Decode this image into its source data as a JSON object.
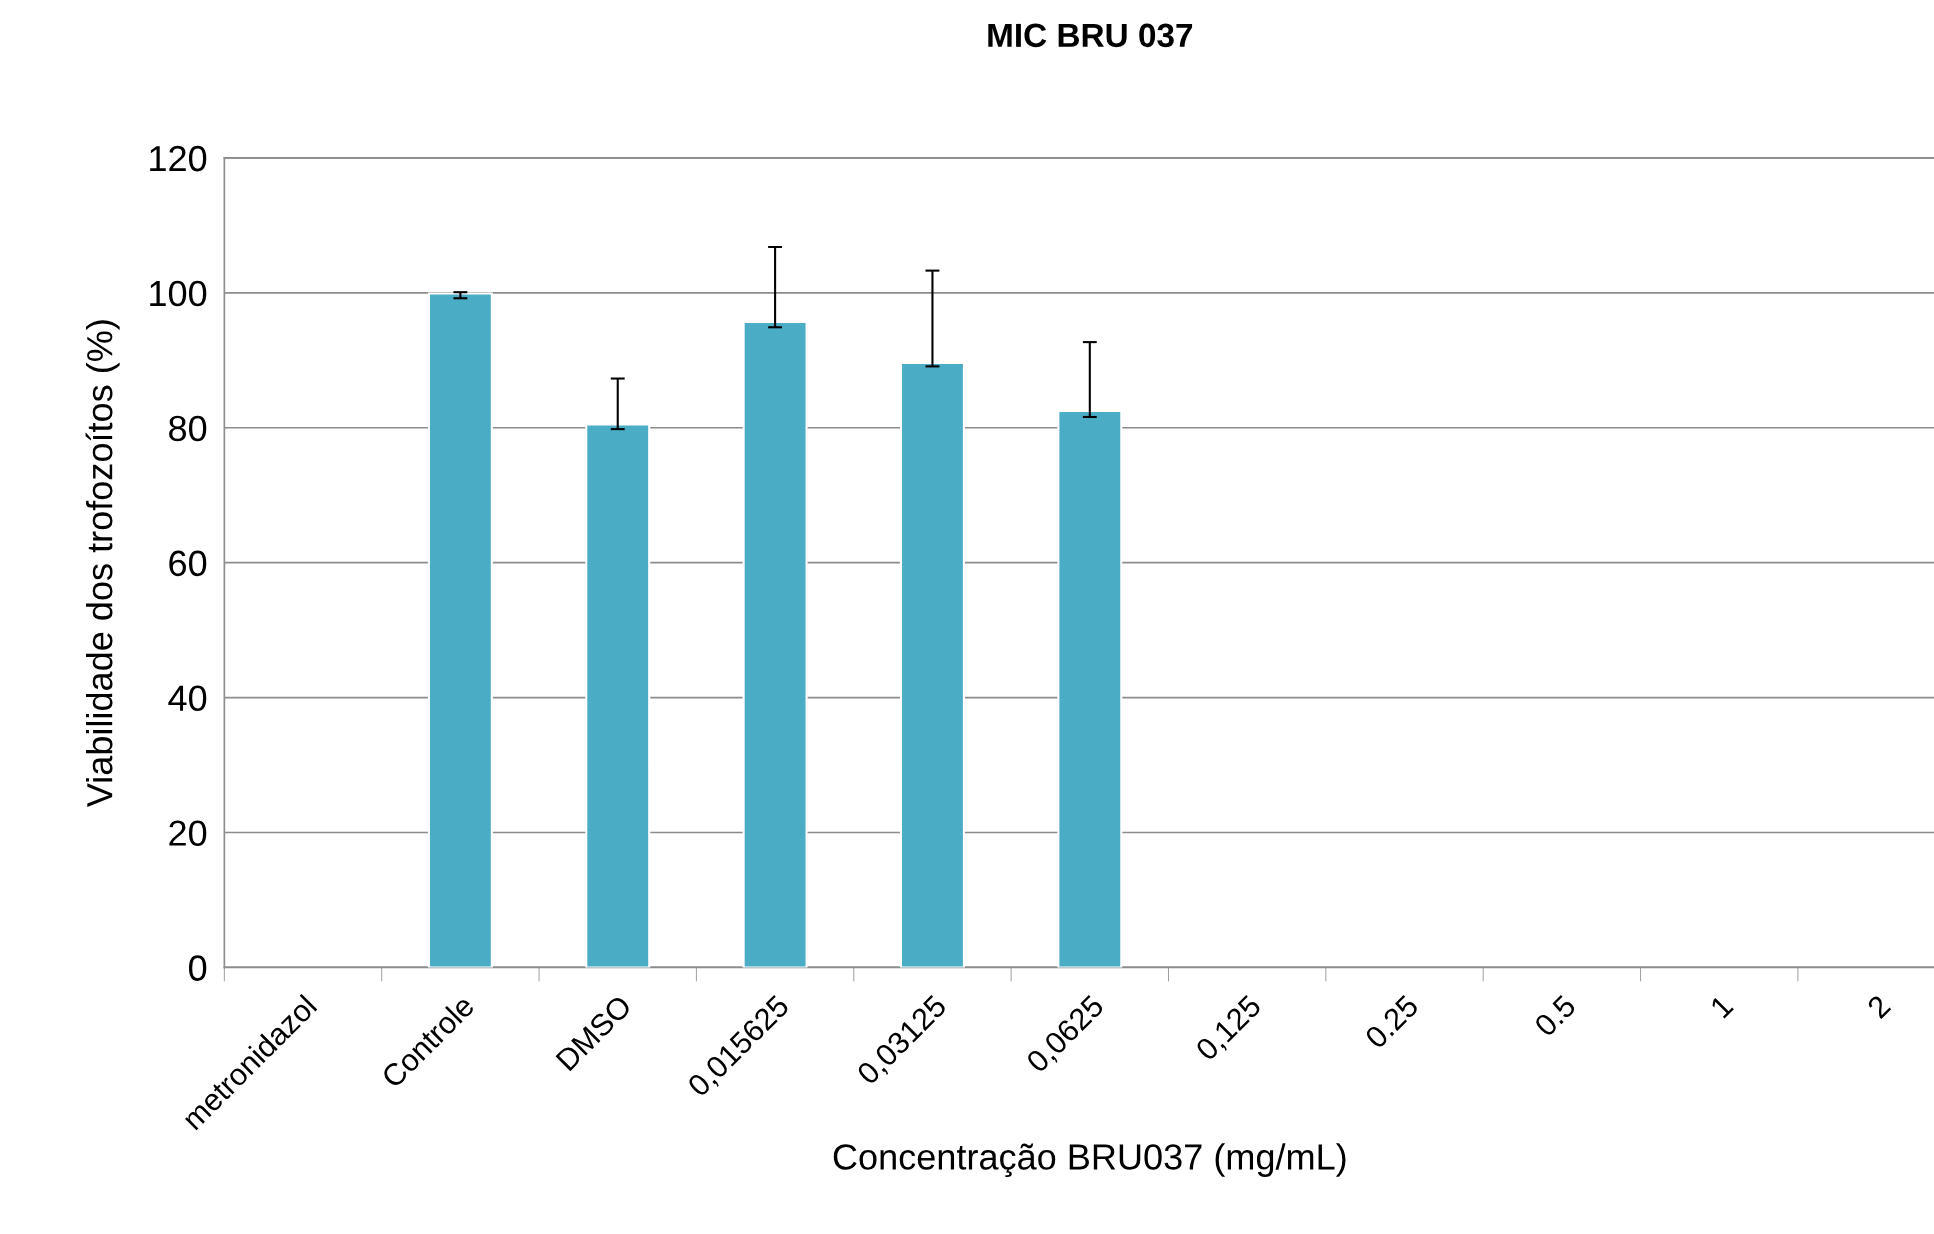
{
  "chart_data": {
    "type": "bar",
    "title": "MIC BRU 037",
    "xlabel": "Concentração BRU037 (mg/mL)",
    "ylabel": "Viabilidade dos trofozoítos (%)",
    "categories": [
      "metronidazol",
      "Controle",
      "DMSO",
      "0,015625",
      "0,03125",
      "0,0625",
      "0,125",
      "0.25",
      "0.5",
      "1",
      "2"
    ],
    "values": [
      null,
      99.9,
      80.5,
      95.7,
      89.6,
      82.5,
      null,
      null,
      null,
      null,
      null
    ],
    "errors": [
      null,
      [
        99.2,
        100.1
      ],
      [
        79.8,
        87.3
      ],
      [
        94.9,
        106.8
      ],
      [
        89.1,
        103.3
      ],
      [
        81.6,
        92.7
      ],
      null,
      null,
      null,
      null,
      null
    ],
    "color": "#4bacc6",
    "ylim": [
      0,
      120
    ],
    "yticks": [
      0,
      20,
      40,
      60,
      80,
      100,
      120
    ],
    "grid": "y",
    "legend": false
  }
}
